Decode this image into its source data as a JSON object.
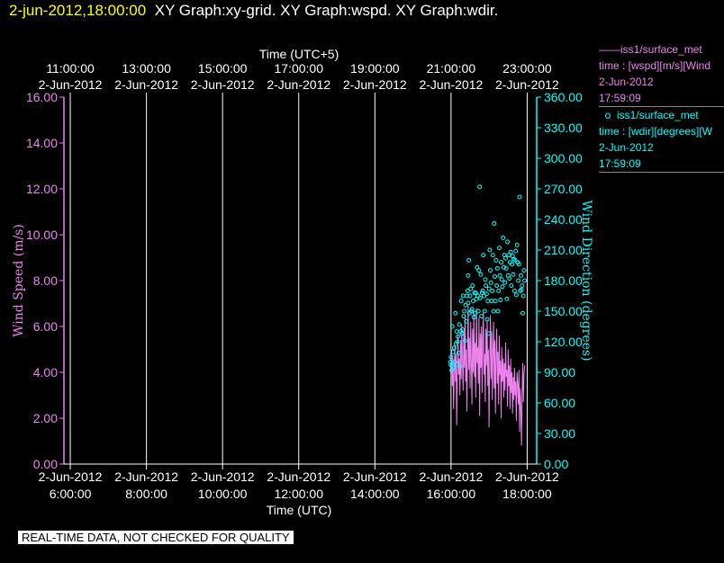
{
  "header": {
    "timestamp": "2-jun-2012,18:00:00",
    "graphs": "XY Graph:xy-grid.  XY Graph:wspd.  XY Graph:wdir."
  },
  "legend": {
    "wspd": {
      "line1": "iss1/surface_met",
      "line2": "time : [wspd][m/s][Wind",
      "line3": "2-Jun-2012",
      "line4": "17:59:09"
    },
    "wdir": {
      "line1": "iss1/surface_met",
      "line2": "time : [wdir][degrees][W",
      "line3": "2-Jun-2012",
      "line4": "17:59:09"
    }
  },
  "qc_banner": "REAL-TIME DATA, NOT CHECKED FOR QUALITY",
  "colors": {
    "background": "#000000",
    "wspd": "#ee82ee",
    "wdir": "#00ffff",
    "grid": "#ffffff",
    "timestamp": "#ffff00"
  },
  "chart_data": {
    "type": "line",
    "top_axis": {
      "label": "Time (UTC+5)",
      "ticks": [
        {
          "time": "11:00:00",
          "date": "2-Jun-2012"
        },
        {
          "time": "13:00:00",
          "date": "2-Jun-2012"
        },
        {
          "time": "15:00:00",
          "date": "2-Jun-2012"
        },
        {
          "time": "17:00:00",
          "date": "2-Jun-2012"
        },
        {
          "time": "19:00:00",
          "date": "2-Jun-2012"
        },
        {
          "time": "21:00:00",
          "date": "2-Jun-2012"
        },
        {
          "time": "23:00:00",
          "date": "2-Jun-2012"
        }
      ]
    },
    "bottom_axis": {
      "label": "Time (UTC)",
      "range": [
        "2-Jun-2012 05:50:00",
        "2-Jun-2012 18:15:00"
      ],
      "ticks": [
        {
          "time": "6:00:00",
          "date": "2-Jun-2012"
        },
        {
          "time": "8:00:00",
          "date": "2-Jun-2012"
        },
        {
          "time": "10:00:00",
          "date": "2-Jun-2012"
        },
        {
          "time": "12:00:00",
          "date": "2-Jun-2012"
        },
        {
          "time": "14:00:00",
          "date": "2-Jun-2012"
        },
        {
          "time": "16:00:00",
          "date": "2-Jun-2012"
        },
        {
          "time": "18:00:00",
          "date": "2-Jun-2012"
        }
      ]
    },
    "left_axis": {
      "label": "Wind Speed (m/s)",
      "ylim": [
        0,
        16
      ],
      "ticks": [
        "0.00",
        "2.00",
        "4.00",
        "6.00",
        "8.00",
        "10.00",
        "12.00",
        "14.00",
        "16.00"
      ]
    },
    "right_axis": {
      "label": "Wind Direction (degrees)",
      "ylim": [
        0,
        360
      ],
      "ticks": [
        "0.00",
        "30.00",
        "60.00",
        "90.00",
        "120.00",
        "150.00",
        "180.00",
        "210.00",
        "240.00",
        "270.00",
        "300.00",
        "330.00",
        "360.00"
      ]
    },
    "grid": true,
    "series": [
      {
        "name": "iss1/surface_met wspd",
        "style": "line",
        "points": [
          [
            "15:59",
            4.3
          ],
          [
            "16:00",
            3.8
          ],
          [
            "16:01",
            5.0
          ],
          [
            "16:02",
            3.4
          ],
          [
            "16:03",
            4.6
          ],
          [
            "16:04",
            2.4
          ],
          [
            "16:05",
            4.1
          ],
          [
            "16:06",
            5.2
          ],
          [
            "16:07",
            3.6
          ],
          [
            "16:08",
            4.8
          ],
          [
            "16:09",
            1.7
          ],
          [
            "16:10",
            4.0
          ],
          [
            "16:11",
            5.6
          ],
          [
            "16:12",
            3.9
          ],
          [
            "16:13",
            4.6
          ],
          [
            "16:14",
            3.0
          ],
          [
            "16:15",
            5.4
          ],
          [
            "16:16",
            3.7
          ],
          [
            "16:17",
            6.1
          ],
          [
            "16:18",
            4.4
          ],
          [
            "16:19",
            3.2
          ],
          [
            "16:20",
            5.8
          ],
          [
            "16:21",
            4.2
          ],
          [
            "16:22",
            6.5
          ],
          [
            "16:23",
            3.6
          ],
          [
            "16:24",
            5.0
          ],
          [
            "16:25",
            2.3
          ],
          [
            "16:26",
            4.8
          ],
          [
            "16:27",
            6.9
          ],
          [
            "16:28",
            4.1
          ],
          [
            "16:29",
            5.5
          ],
          [
            "16:30",
            3.3
          ],
          [
            "16:31",
            6.2
          ],
          [
            "16:32",
            4.5
          ],
          [
            "16:33",
            2.6
          ],
          [
            "16:34",
            5.9
          ],
          [
            "16:35",
            4.0
          ],
          [
            "16:36",
            6.6
          ],
          [
            "16:37",
            3.8
          ],
          [
            "16:38",
            5.3
          ],
          [
            "16:39",
            2.9
          ],
          [
            "16:40",
            6.8
          ],
          [
            "16:41",
            4.4
          ],
          [
            "16:42",
            5.1
          ],
          [
            "16:43",
            3.5
          ],
          [
            "16:44",
            6.4
          ],
          [
            "16:45",
            2.1
          ],
          [
            "16:46",
            5.7
          ],
          [
            "16:47",
            4.2
          ],
          [
            "16:48",
            6.0
          ],
          [
            "16:49",
            3.1
          ],
          [
            "16:50",
            5.5
          ],
          [
            "16:51",
            6.6
          ],
          [
            "16:52",
            3.9
          ],
          [
            "16:53",
            4.8
          ],
          [
            "16:54",
            2.7
          ],
          [
            "16:55",
            5.9
          ],
          [
            "16:56",
            4.3
          ],
          [
            "16:57",
            6.3
          ],
          [
            "16:58",
            3.4
          ],
          [
            "16:59",
            5.0
          ],
          [
            "17:00",
            1.6
          ],
          [
            "17:01",
            4.6
          ],
          [
            "17:02",
            6.5
          ],
          [
            "17:03",
            3.7
          ],
          [
            "17:04",
            5.8
          ],
          [
            "17:05",
            2.8
          ],
          [
            "17:06",
            4.9
          ],
          [
            "17:07",
            6.2
          ],
          [
            "17:08",
            3.3
          ],
          [
            "17:09",
            5.4
          ],
          [
            "17:10",
            2.2
          ],
          [
            "17:11",
            4.7
          ],
          [
            "17:12",
            5.9
          ],
          [
            "17:13",
            3.5
          ],
          [
            "17:14",
            4.9
          ],
          [
            "17:15",
            2.6
          ],
          [
            "17:16",
            5.6
          ],
          [
            "17:17",
            3.9
          ],
          [
            "17:18",
            4.5
          ],
          [
            "17:19",
            2.0
          ],
          [
            "17:20",
            5.1
          ],
          [
            "17:21",
            3.6
          ],
          [
            "17:22",
            4.6
          ],
          [
            "17:23",
            2.9
          ],
          [
            "17:24",
            4.4
          ],
          [
            "17:25",
            3.2
          ],
          [
            "17:26",
            5.3
          ],
          [
            "17:27",
            3.8
          ],
          [
            "17:28",
            4.1
          ],
          [
            "17:29",
            2.5
          ],
          [
            "17:30",
            5.0
          ],
          [
            "17:31",
            3.4
          ],
          [
            "17:32",
            4.3
          ],
          [
            "17:33",
            2.4
          ],
          [
            "17:34",
            4.6
          ],
          [
            "17:35",
            3.1
          ],
          [
            "17:36",
            4.0
          ],
          [
            "17:37",
            2.2
          ],
          [
            "17:38",
            3.8
          ],
          [
            "17:39",
            2.8
          ],
          [
            "17:40",
            4.2
          ],
          [
            "17:41",
            3.0
          ],
          [
            "17:42",
            3.6
          ],
          [
            "17:43",
            1.9
          ],
          [
            "17:44",
            4.0
          ],
          [
            "17:45",
            3.5
          ],
          [
            "17:46",
            2.6
          ],
          [
            "17:47",
            4.1
          ],
          [
            "17:48",
            1.4
          ],
          [
            "17:49",
            3.3
          ],
          [
            "17:50",
            2.5
          ],
          [
            "17:51",
            0.8
          ],
          [
            "17:52",
            3.0
          ],
          [
            "17:53",
            4.4
          ],
          [
            "17:54",
            2.7
          ],
          [
            "17:55",
            3.9
          ],
          [
            "17:56",
            4.3
          ]
        ]
      },
      {
        "name": "iss1/surface_met wdir",
        "style": "scatter",
        "points": [
          [
            "15:59",
            100
          ],
          [
            "16:00",
            105
          ],
          [
            "16:00",
            97
          ],
          [
            "16:01",
            92
          ],
          [
            "16:02",
            98
          ],
          [
            "16:02",
            135
          ],
          [
            "16:03",
            110
          ],
          [
            "16:04",
            95
          ],
          [
            "16:05",
            114
          ],
          [
            "16:06",
            100
          ],
          [
            "16:07",
            148
          ],
          [
            "16:08",
            118
          ],
          [
            "16:09",
            130
          ],
          [
            "16:10",
            120
          ],
          [
            "16:11",
            125
          ],
          [
            "16:12",
            109
          ],
          [
            "16:13",
            137
          ],
          [
            "16:14",
            96
          ],
          [
            "16:15",
            130
          ],
          [
            "16:16",
            160
          ],
          [
            "16:17",
            128
          ],
          [
            "16:18",
            132
          ],
          [
            "16:19",
            165
          ],
          [
            "16:20",
            145
          ],
          [
            "16:21",
            150
          ],
          [
            "16:22",
            121
          ],
          [
            "16:23",
            156
          ],
          [
            "16:24",
            140
          ],
          [
            "16:25",
            165
          ],
          [
            "16:26",
            170
          ],
          [
            "16:27",
            185
          ],
          [
            "16:27",
            158
          ],
          [
            "16:28",
            200
          ],
          [
            "16:29",
            148
          ],
          [
            "16:30",
            165
          ],
          [
            "16:31",
            172
          ],
          [
            "16:32",
            150
          ],
          [
            "16:33",
            152
          ],
          [
            "16:34",
            175
          ],
          [
            "16:35",
            160
          ],
          [
            "16:36",
            144
          ],
          [
            "16:37",
            168
          ],
          [
            "16:38",
            148
          ],
          [
            "16:39",
            168
          ],
          [
            "16:40",
            162
          ],
          [
            "16:41",
            193
          ],
          [
            "16:42",
            165
          ],
          [
            "16:43",
            150
          ],
          [
            "16:44",
            190
          ],
          [
            "16:45",
            272
          ],
          [
            "16:46",
            163
          ],
          [
            "16:47",
            186
          ],
          [
            "16:48",
            145
          ],
          [
            "16:49",
            168
          ],
          [
            "16:50",
            170
          ],
          [
            "16:51",
            205
          ],
          [
            "16:52",
            165
          ],
          [
            "16:53",
            150
          ],
          [
            "16:54",
            181
          ],
          [
            "16:55",
            175
          ],
          [
            "16:56",
            167
          ],
          [
            "16:57",
            142
          ],
          [
            "16:58",
            160
          ],
          [
            "16:59",
            128
          ],
          [
            "17:00",
            172
          ],
          [
            "17:01",
            210
          ],
          [
            "17:02",
            190
          ],
          [
            "17:03",
            178
          ],
          [
            "17:04",
            160
          ],
          [
            "17:05",
            170
          ],
          [
            "17:06",
            205
          ],
          [
            "17:07",
            150
          ],
          [
            "17:08",
            236
          ],
          [
            "17:09",
            184
          ],
          [
            "17:10",
            160
          ],
          [
            "17:11",
            200
          ],
          [
            "17:12",
            175
          ],
          [
            "17:13",
            192
          ],
          [
            "17:14",
            150
          ],
          [
            "17:15",
            170
          ],
          [
            "17:16",
            212
          ],
          [
            "17:17",
            185
          ],
          [
            "17:18",
            161
          ],
          [
            "17:19",
            198
          ],
          [
            "17:20",
            181
          ],
          [
            "17:21",
            174
          ],
          [
            "17:22",
            222
          ],
          [
            "17:23",
            193
          ],
          [
            "17:24",
            205
          ],
          [
            "17:25",
            178
          ],
          [
            "17:26",
            202
          ],
          [
            "17:27",
            192
          ],
          [
            "17:28",
            162
          ],
          [
            "17:29",
            218
          ],
          [
            "17:30",
            185
          ],
          [
            "17:31",
            205
          ],
          [
            "17:32",
            182
          ],
          [
            "17:33",
            198
          ],
          [
            "17:34",
            208
          ],
          [
            "17:35",
            175
          ],
          [
            "17:36",
            196
          ],
          [
            "17:37",
            204
          ],
          [
            "17:38",
            186
          ],
          [
            "17:39",
            201
          ],
          [
            "17:40",
            170
          ],
          [
            "17:41",
            200
          ],
          [
            "17:42",
            209
          ],
          [
            "17:43",
            166
          ],
          [
            "17:44",
            215
          ],
          [
            "17:45",
            198
          ],
          [
            "17:46",
            180
          ],
          [
            "17:47",
            196
          ],
          [
            "17:48",
            262
          ],
          [
            "17:49",
            170
          ],
          [
            "17:50",
            185
          ],
          [
            "17:51",
            171
          ],
          [
            "17:52",
            175
          ],
          [
            "17:53",
            148
          ],
          [
            "17:54",
            165
          ],
          [
            "17:55",
            190
          ],
          [
            "17:56",
            180
          ]
        ]
      }
    ]
  }
}
